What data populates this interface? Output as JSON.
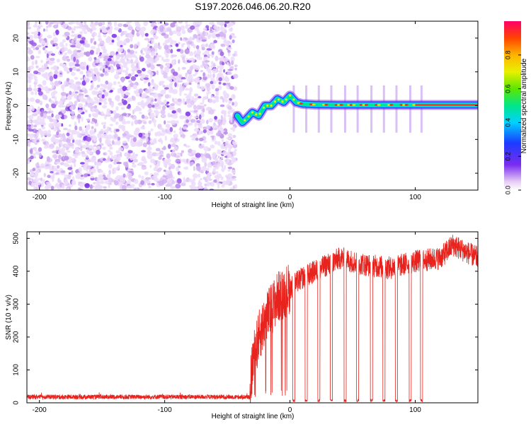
{
  "title": "S197.2026.046.06.20.R20",
  "chart_data": [
    {
      "type": "heatmap",
      "name": "spectrogram",
      "xlabel": "Height of straight line (km)",
      "ylabel": "Frequency (Hz)",
      "xlim": [
        -210,
        150
      ],
      "ylim": [
        -25,
        25
      ],
      "x_ticks": [
        -200,
        -100,
        0,
        100
      ],
      "y_ticks": [
        -20,
        -10,
        0,
        10,
        20
      ],
      "colorbar": {
        "label": "Normalized spectral amplitude",
        "range": [
          0,
          1
        ],
        "ticks": [
          0.0,
          0.2,
          0.4,
          0.6,
          0.8
        ]
      },
      "signal_track": {
        "heights_km": [
          -42,
          -38,
          -35,
          -30,
          -25,
          -20,
          -15,
          -10,
          -5,
          0,
          5,
          10,
          20,
          40,
          60,
          80,
          100,
          150
        ],
        "frequency_hz": [
          -3,
          -5,
          -4,
          -2,
          -3,
          0,
          0,
          2,
          1,
          3,
          1,
          0.5,
          0.3,
          0.2,
          0.2,
          0.2,
          0.2,
          0.2
        ]
      },
      "noise_region_km": [
        -210,
        -43
      ],
      "blank_region_km": [
        -43,
        150
      ]
    },
    {
      "type": "line",
      "name": "snr",
      "xlabel": "Height of straight line (km)",
      "ylabel": "SNR (10 * v/v)",
      "xlim": [
        -210,
        150
      ],
      "ylim": [
        0,
        520
      ],
      "x_ticks": [
        -200,
        -100,
        0,
        100
      ],
      "y_ticks": [
        0,
        100,
        200,
        300,
        400,
        500
      ],
      "color": "#e8221c",
      "noise_floor": 18,
      "envelope": {
        "x": [
          -210,
          -32,
          -30,
          -25,
          -20,
          -10,
          0,
          10,
          20,
          30,
          40,
          60,
          80,
          100,
          120,
          130,
          140,
          150
        ],
        "y": [
          18,
          18,
          120,
          200,
          250,
          320,
          350,
          380,
          400,
          420,
          440,
          420,
          410,
          430,
          440,
          480,
          460,
          440
        ]
      },
      "dropouts_km": [
        3,
        13,
        23,
        33,
        44,
        54,
        65,
        75,
        85,
        96,
        105
      ]
    }
  ]
}
